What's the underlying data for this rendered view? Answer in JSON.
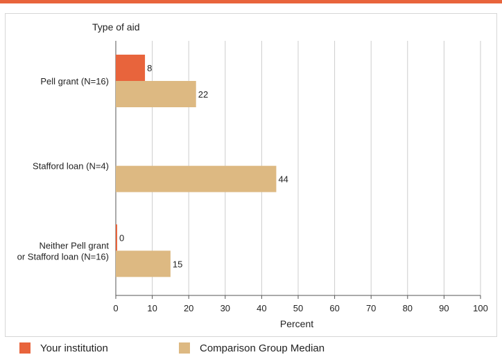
{
  "colors": {
    "top_rule": "#e8643c",
    "your_institution": "#e8643c",
    "comparison_median": "#ddb982",
    "gridline": "#cccccc",
    "axis": "#555555"
  },
  "chart_data": {
    "type": "bar",
    "orientation": "horizontal",
    "y_axis_title": "Type of aid",
    "xlabel": "Percent",
    "xlim": [
      0,
      100
    ],
    "xticks": [
      0,
      10,
      20,
      30,
      40,
      50,
      60,
      70,
      80,
      90,
      100
    ],
    "grid": true,
    "legend_position": "bottom",
    "categories": [
      {
        "label_lines": [
          "Pell grant  (N=16)"
        ]
      },
      {
        "label_lines": [
          "Stafford loan (N=4)"
        ]
      },
      {
        "label_lines": [
          "Neither Pell grant",
          "or Stafford loan (N=16)"
        ]
      }
    ],
    "series": [
      {
        "name": "Your institution",
        "color": "#e8643c",
        "values": [
          8,
          null,
          0
        ]
      },
      {
        "name": "Comparison Group Median",
        "color": "#ddb982",
        "values": [
          22,
          44,
          15
        ]
      }
    ]
  }
}
